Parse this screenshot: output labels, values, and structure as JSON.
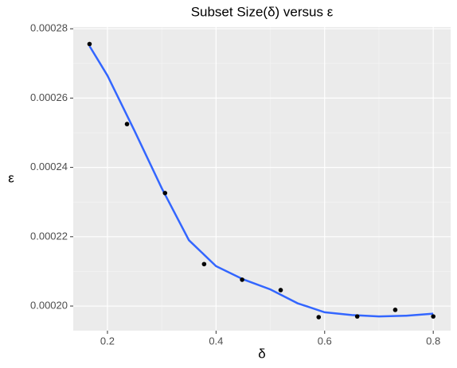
{
  "chart_data": {
    "type": "scatter",
    "title": "Subset Size(δ) versus ε",
    "x_label": "δ",
    "y_label": "ε",
    "points": {
      "color": "#000000",
      "x": [
        0.167,
        0.236,
        0.306,
        0.378,
        0.448,
        0.519,
        0.589,
        0.66,
        0.73,
        0.8
      ],
      "y": [
        0.0002756,
        0.0002525,
        0.0002326,
        0.0002121,
        0.0002076,
        0.0002046,
        0.0001968,
        0.000197,
        0.0001989,
        0.000197
      ]
    },
    "smooth": {
      "color": "#3366ff",
      "x": [
        0.167,
        0.2,
        0.25,
        0.3,
        0.35,
        0.4,
        0.45,
        0.5,
        0.55,
        0.6,
        0.65,
        0.7,
        0.75,
        0.8
      ],
      "y": [
        0.000275,
        0.0002665,
        0.0002505,
        0.000234,
        0.000219,
        0.0002115,
        0.0002077,
        0.0002048,
        0.0002008,
        0.0001982,
        0.0001974,
        0.000197,
        0.0001972,
        0.0001978
      ]
    },
    "xlim": [
      0.137,
      0.832
    ],
    "ylim": [
      0.0001929,
      0.0002805
    ],
    "xticks": [
      0.2,
      0.4,
      0.6,
      0.8
    ],
    "yticks": [
      {
        "value": 0.0002,
        "label": "0.00020"
      },
      {
        "value": 0.00022,
        "label": "0.00022"
      },
      {
        "value": 0.00024,
        "label": "0.00024"
      },
      {
        "value": 0.00026,
        "label": "0.00026"
      },
      {
        "value": 0.00028,
        "label": "0.00028"
      }
    ],
    "x_minor_ticks": [
      0.3,
      0.5,
      0.7
    ],
    "y_minor_ticks": [
      0.00021,
      0.00023,
      0.00025,
      0.00027
    ],
    "grid": true
  }
}
